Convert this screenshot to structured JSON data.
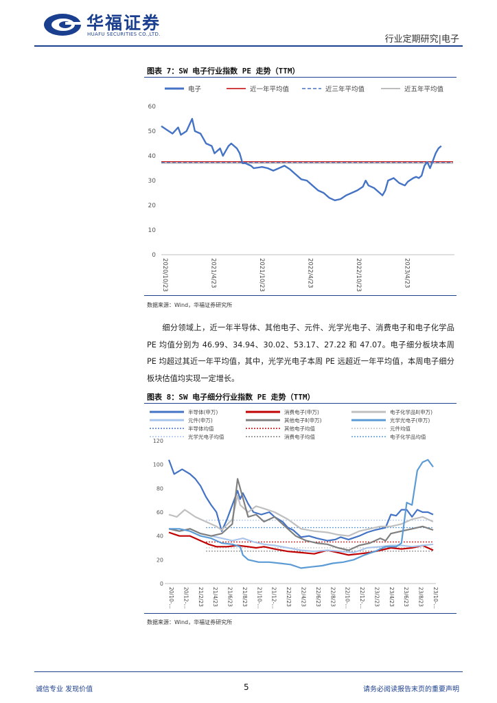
{
  "header": {
    "logo_cn": "华福证券",
    "logo_en": "HUAFU SECURITIES CO.,LTD.",
    "section": "行业定期研究|电子"
  },
  "figure7": {
    "title": "图表 7：SW 电子行业指数 PE 走势（TTM）",
    "source": "数据来源：Wind，华福证券研究所"
  },
  "paragraph": "细分领域上，近一年半导体、其他电子、元件、光学光电子、消费电子和电子化学品 PE 均值分别为 46.99、34.94、30.02、53.17、27.22 和 47.07。电子细分板块本周 PE 均超过其近一年平均值，其中，光学光电子本周 PE 远超近一年平均值，本周电子细分板块估值均实现一定增长。",
  "figure8": {
    "title": "图表 8：SW 电子细分行业指数 PE 走势（TTM）",
    "source": "数据来源：Wind，华福证券研究所"
  },
  "footer": {
    "left": "诚信专业  发现价值",
    "page": "5",
    "right": "请务必阅读报告末页的重要声明"
  },
  "chart_data": [
    {
      "type": "line",
      "ylim": [
        0,
        60
      ],
      "yticks": [
        "0",
        "10",
        "20",
        "30",
        "40",
        "50",
        "60"
      ],
      "xticks": [
        "2020/10/23",
        "2021/4/23",
        "2021/10/23",
        "2022/4/23",
        "2022/10/23",
        "2023/4/23"
      ],
      "x_range": [
        "2020/10/23",
        "2023/10/27"
      ],
      "legend_position": "top",
      "series": [
        {
          "name": "电子",
          "color": "#4472c4",
          "points": [
            [
              0.0,
              52
            ],
            [
              0.02,
              50.5
            ],
            [
              0.04,
              49
            ],
            [
              0.06,
              51.5
            ],
            [
              0.07,
              48.5
            ],
            [
              0.09,
              50
            ],
            [
              0.11,
              55
            ],
            [
              0.12,
              50
            ],
            [
              0.14,
              49
            ],
            [
              0.15,
              47
            ],
            [
              0.16,
              45
            ],
            [
              0.18,
              44
            ],
            [
              0.19,
              41
            ],
            [
              0.21,
              43
            ],
            [
              0.22,
              40
            ],
            [
              0.23,
              42
            ],
            [
              0.24,
              44
            ],
            [
              0.25,
              45
            ],
            [
              0.26,
              44
            ],
            [
              0.27,
              43
            ],
            [
              0.28,
              41
            ],
            [
              0.29,
              37
            ],
            [
              0.3,
              37
            ],
            [
              0.32,
              36
            ],
            [
              0.33,
              35
            ],
            [
              0.36,
              35.5
            ],
            [
              0.38,
              35
            ],
            [
              0.4,
              34
            ],
            [
              0.42,
              35
            ],
            [
              0.44,
              36
            ],
            [
              0.46,
              34.5
            ],
            [
              0.48,
              32.5
            ],
            [
              0.5,
              30.5
            ],
            [
              0.52,
              30
            ],
            [
              0.54,
              28
            ],
            [
              0.56,
              26
            ],
            [
              0.58,
              25
            ],
            [
              0.6,
              23
            ],
            [
              0.62,
              22
            ],
            [
              0.64,
              22.5
            ],
            [
              0.66,
              24
            ],
            [
              0.68,
              25
            ],
            [
              0.7,
              26
            ],
            [
              0.72,
              27.5
            ],
            [
              0.73,
              30
            ],
            [
              0.74,
              28
            ],
            [
              0.76,
              27
            ],
            [
              0.78,
              25
            ],
            [
              0.79,
              24
            ],
            [
              0.8,
              26
            ],
            [
              0.81,
              30
            ],
            [
              0.83,
              31
            ],
            [
              0.85,
              29
            ],
            [
              0.87,
              28
            ],
            [
              0.88,
              29.5
            ],
            [
              0.9,
              31
            ],
            [
              0.91,
              31.5
            ],
            [
              0.92,
              31
            ],
            [
              0.93,
              32
            ],
            [
              0.94,
              36
            ],
            [
              0.95,
              37.5
            ],
            [
              0.96,
              35
            ],
            [
              0.97,
              38
            ],
            [
              0.98,
              41
            ],
            [
              0.99,
              43
            ],
            [
              1.0,
              44
            ]
          ],
          "note": "x as fraction of period; values in PE"
        },
        {
          "name": "近一年平均值",
          "color": "#c00000",
          "value": 37.6
        },
        {
          "name": "近三年平均值",
          "color": "#4472c4",
          "value": 37.3,
          "dashed": true
        },
        {
          "name": "近五年平均值",
          "color": "#a6a6a6",
          "value": 37.0
        }
      ]
    },
    {
      "type": "line",
      "ylim": [
        0,
        120
      ],
      "yticks": [
        "0",
        "20",
        "40",
        "60",
        "80",
        "100",
        "120"
      ],
      "xticks": [
        "20/10-...",
        "20/12-...",
        "21/2/23",
        "21/4/23",
        "21/6/23",
        "21/8/23",
        "21/10-...",
        "21/12-...",
        "22/2/23",
        "22/4/23",
        "22/6/23",
        "22/8/23",
        "22/10-...",
        "22/12-...",
        "23/2/23",
        "23/4/23",
        "23/6/23",
        "23/8/23",
        "23/10-..."
      ],
      "legend_position": "top",
      "series": [
        {
          "name": "半导体(申万)",
          "color": "#4472c4",
          "style": "solid"
        },
        {
          "name": "消费电子(申万)",
          "color": "#c00000",
          "style": "solid"
        },
        {
          "name": "电子化学品Ⅱ(申万)",
          "color": "#bfbfbf",
          "style": "solid"
        },
        {
          "name": "元件(申万)",
          "color": "#a9c4eb",
          "style": "solid"
        },
        {
          "name": "其他电子Ⅱ(申万)",
          "color": "#7f7f7f",
          "style": "solid"
        },
        {
          "name": "光学光电子(申万)",
          "color": "#5b9bd5",
          "style": "solid"
        },
        {
          "name": "半导体均值",
          "color": "#4472c4",
          "style": "dotted",
          "value": 46.99
        },
        {
          "name": "其他电子均值",
          "color": "#c00000",
          "style": "dotted",
          "value": 34.94
        },
        {
          "name": "元件均值",
          "color": "#bfbfbf",
          "style": "dotted",
          "value": 30.02
        },
        {
          "name": "光学光电子均值",
          "color": "#a9c4eb",
          "style": "dotted",
          "value": 53.17
        },
        {
          "name": "消费电子均值",
          "color": "#7f7f7f",
          "style": "dotted",
          "value": 27.22
        },
        {
          "name": "电子化学品均值",
          "color": "#5b9bd5",
          "style": "dotted",
          "value": 47.07
        }
      ]
    }
  ]
}
